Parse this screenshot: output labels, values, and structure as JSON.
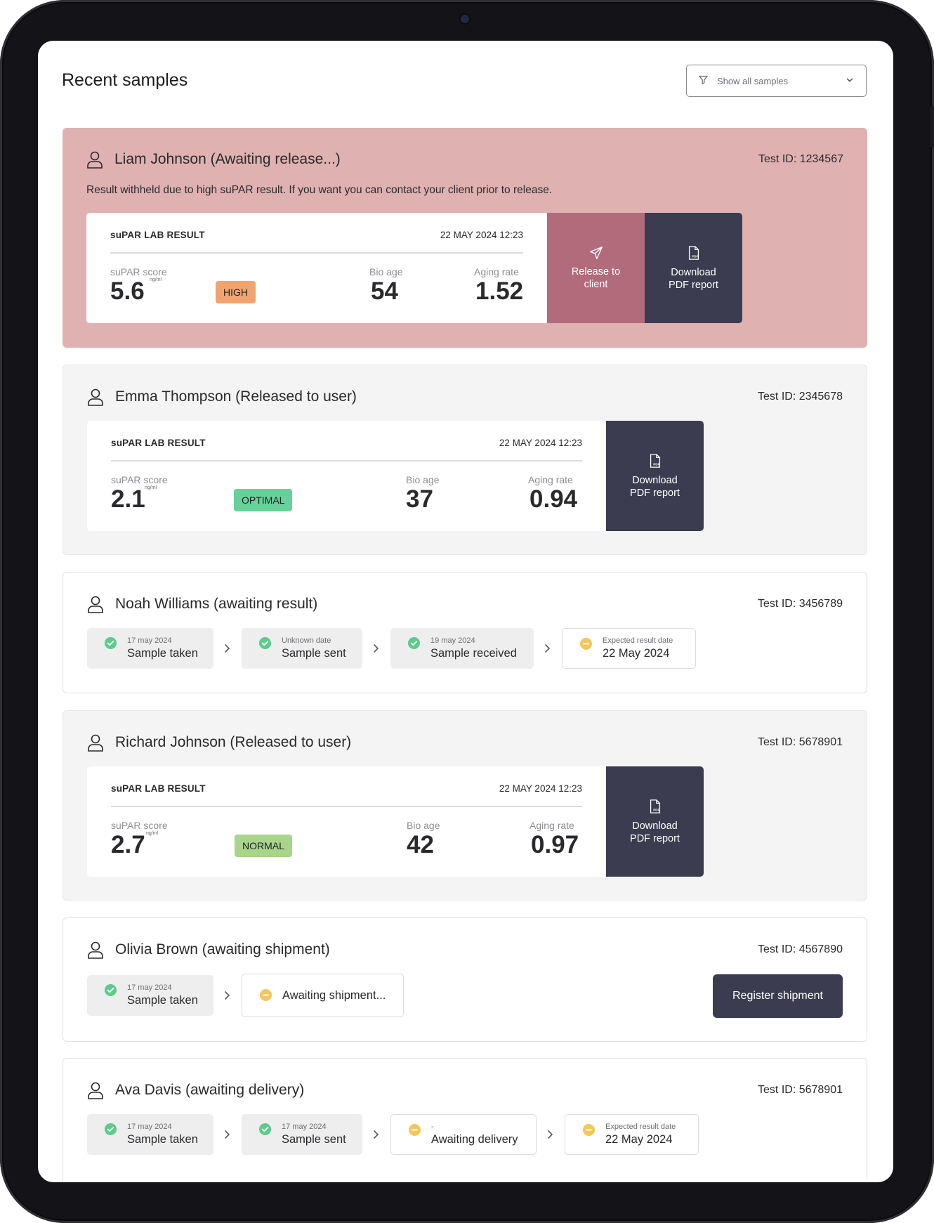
{
  "page": {
    "title": "Recent samples",
    "filter": {
      "label": "Show all samples",
      "icon": "filter-icon",
      "dropdown_icon": "chevron-down-icon"
    }
  },
  "colors": {
    "alert_card": "#dfb1b1",
    "release_button": "#b16b7b",
    "dark_button": "#3b3c4f",
    "badge_high": "#f0a470",
    "badge_optimal": "#67d199",
    "badge_normal": "#a9d48c",
    "check_green": "#5ccb8b",
    "pending_yellow": "#f2c75c"
  },
  "samples": [
    {
      "name": "Liam Johnson (Awaiting release...)",
      "test_id": "Test ID: 1234567",
      "notice": "Result withheld due to high suPAR result. If you want you can contact your client prior to release.",
      "result": {
        "title": "suPAR LAB RESULT",
        "date": "22 MAY 2024 12:23",
        "score_label": "suPAR score",
        "score": "5.6",
        "unit": "ng/ml",
        "badge": "HIGH",
        "bio_age_label": "Bio age",
        "bio_age": "54",
        "aging_label": "Aging rate",
        "aging": "1.52"
      },
      "release_button": "Release to client",
      "download_button": "Download PDF report"
    },
    {
      "name": "Emma Thompson (Released to user)",
      "test_id": "Test ID: 2345678",
      "result": {
        "title": "suPAR LAB RESULT",
        "date": "22 MAY 2024 12:23",
        "score_label": "suPAR score",
        "score": "2.1",
        "unit": "ng/ml",
        "badge": "OPTIMAL",
        "bio_age_label": "Bio age",
        "bio_age": "37",
        "aging_label": "Aging rate",
        "aging": "0.94"
      },
      "download_button": "Download PDF report"
    },
    {
      "name": "Noah Williams (awaiting result)",
      "test_id": "Test ID: 3456789",
      "steps": [
        {
          "small": "17 may 2024",
          "main": "Sample taken"
        },
        {
          "small": "Unknown date",
          "main": "Sample sent"
        },
        {
          "small": "19 may 2024",
          "main": "Sample received"
        },
        {
          "small": "Expected result date",
          "main": "22 May 2024"
        }
      ]
    },
    {
      "name": "Richard Johnson (Released to user)",
      "test_id": "Test ID: 5678901",
      "result": {
        "title": "suPAR LAB RESULT",
        "date": "22 MAY 2024 12:23",
        "score_label": "suPAR score",
        "score": "2.7",
        "unit": "ng/ml",
        "badge": "NORMAL",
        "bio_age_label": "Bio age",
        "bio_age": "42",
        "aging_label": "Aging rate",
        "aging": "0.97"
      },
      "download_button": "Download PDF report"
    },
    {
      "name": "Olivia Brown (awaiting shipment)",
      "test_id": "Test ID: 4567890",
      "steps": [
        {
          "small": "17 may 2024",
          "main": "Sample taken"
        },
        {
          "main": "Awaiting shipment..."
        }
      ],
      "register_button": "Register shipment"
    },
    {
      "name": "Ava Davis (awaiting delivery)",
      "test_id": "Test ID: 5678901",
      "steps": [
        {
          "small": "17 may 2024",
          "main": "Sample taken"
        },
        {
          "small": "17 may 2024",
          "main": "Sample sent"
        },
        {
          "small": "-",
          "main": "Awaiting delivery"
        },
        {
          "small": "Expected result date",
          "main": "22 May 2024"
        }
      ]
    }
  ]
}
